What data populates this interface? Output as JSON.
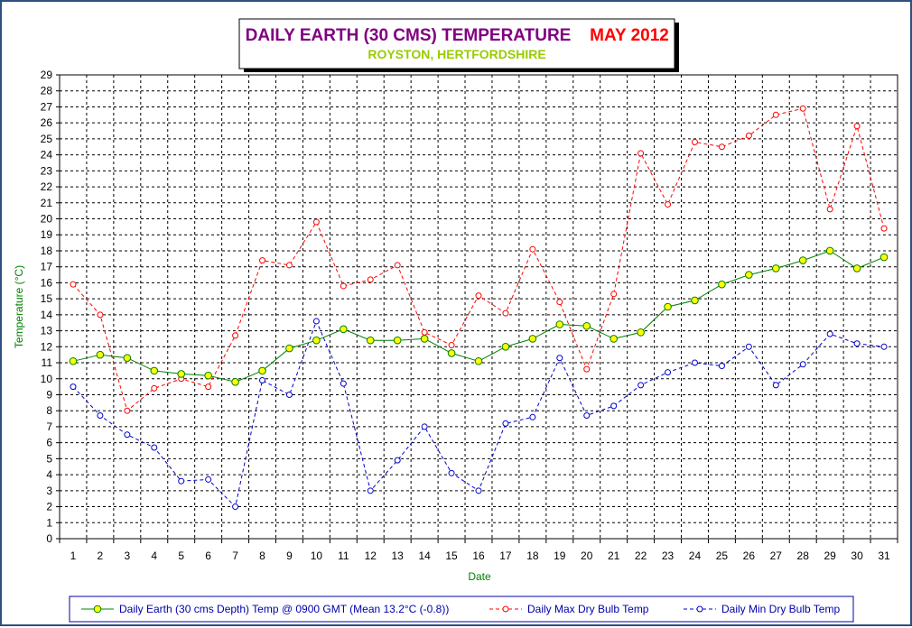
{
  "chart_data": {
    "type": "line",
    "title": "DAILY EARTH (30 CMS) TEMPERATURE",
    "title_date": "MAY 2012",
    "subtitle": "ROYSTON, HERTFORDSHIRE",
    "xlabel": "Date",
    "ylabel": "Temperature (°C)",
    "ylim": [
      0,
      29
    ],
    "y_ticks": [
      "0",
      "1",
      "2",
      "3",
      "4",
      "5",
      "6",
      "7",
      "8",
      "9",
      "10",
      "11",
      "12",
      "13",
      "14",
      "15",
      "16",
      "17",
      "18",
      "19",
      "20",
      "21",
      "22",
      "23",
      "24",
      "25",
      "26",
      "27",
      "28",
      "29"
    ],
    "categories": [
      "1",
      "2",
      "3",
      "4",
      "5",
      "6",
      "7",
      "8",
      "9",
      "10",
      "11",
      "12",
      "13",
      "14",
      "15",
      "16",
      "17",
      "18",
      "19",
      "20",
      "21",
      "22",
      "23",
      "24",
      "25",
      "26",
      "27",
      "28",
      "29",
      "30",
      "31"
    ],
    "grid": true,
    "legend_position": "bottom",
    "series": [
      {
        "name": "Daily Earth (30 cms Depth) Temp @ 0900 GMT (Mean 13.2°C (-0.8))",
        "color": "#008000",
        "marker_fill": "#ffff00",
        "style": "solid",
        "values": [
          11.1,
          11.5,
          11.3,
          10.5,
          10.3,
          10.2,
          9.8,
          10.5,
          11.9,
          12.4,
          13.1,
          12.4,
          12.4,
          12.5,
          11.6,
          11.1,
          12.0,
          12.5,
          13.4,
          13.3,
          12.5,
          12.9,
          14.5,
          14.9,
          15.9,
          16.5,
          16.9,
          17.4,
          18.0,
          16.9,
          17.6
        ]
      },
      {
        "name": "Daily Max Dry Bulb Temp",
        "color": "#ff0000",
        "marker_fill": "#ffffff",
        "style": "dashed",
        "values": [
          15.9,
          14.0,
          8.0,
          9.4,
          10.0,
          9.5,
          12.7,
          17.4,
          17.1,
          19.8,
          15.8,
          16.2,
          17.1,
          12.9,
          12.1,
          15.2,
          14.1,
          18.1,
          14.8,
          10.6,
          15.3,
          24.1,
          20.9,
          24.8,
          24.5,
          25.2,
          26.5,
          26.9,
          20.6,
          25.8,
          19.4
        ]
      },
      {
        "name": "Daily Min Dry Bulb Temp",
        "color": "#0000cc",
        "marker_fill": "#ffffff",
        "style": "dashed",
        "values": [
          9.5,
          7.7,
          6.5,
          5.7,
          3.6,
          3.7,
          2.0,
          9.9,
          9.0,
          13.6,
          9.7,
          3.0,
          4.9,
          7.0,
          4.1,
          3.0,
          7.2,
          7.6,
          11.3,
          7.7,
          8.3,
          9.6,
          10.4,
          11.0,
          10.8,
          12.0,
          9.6,
          10.9,
          12.8,
          12.2,
          12.0
        ]
      }
    ]
  },
  "colors": {
    "title": "#800080",
    "title_date": "#ff0000",
    "subtitle": "#99cc00",
    "axis_label": "#008000",
    "frame": "#2f4f7f",
    "legend_border": "#0000aa"
  }
}
